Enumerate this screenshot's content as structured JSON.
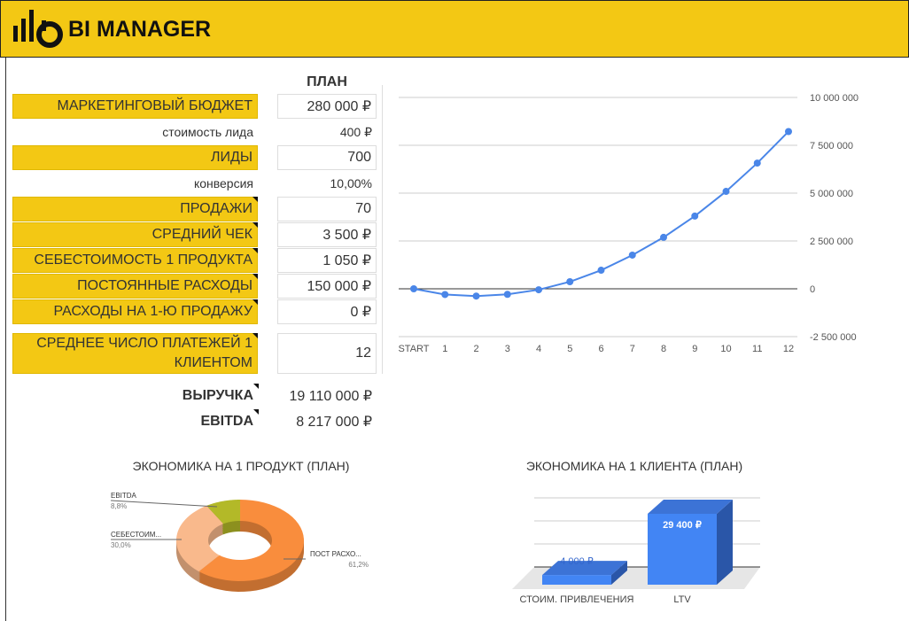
{
  "header": {
    "title": "BI MANAGER"
  },
  "table": {
    "column_header": "ПЛАН",
    "rows": [
      [
        "МАРКЕТИНГОВЫЙ БЮДЖЕТ",
        "280 000 ₽"
      ],
      [
        "стоимость лида",
        "400 ₽"
      ],
      [
        "ЛИДЫ",
        "700"
      ],
      [
        "конверсия",
        "10,00%"
      ],
      [
        "ПРОДАЖИ",
        "70"
      ],
      [
        "СРЕДНИЙ ЧЕК",
        "3 500 ₽"
      ],
      [
        "СЕБЕСТОИМОСТЬ 1 ПРОДУКТА",
        "1 050 ₽"
      ],
      [
        "ПОСТОЯННЫЕ РАСХОДЫ",
        "150 000 ₽"
      ],
      [
        "РАСХОДЫ НА 1-Ю ПРОДАЖУ",
        "0 ₽"
      ],
      [
        "СРЕДНЕЕ ЧИСЛО ПЛАТЕЖЕЙ 1 КЛИЕНТОМ",
        "12"
      ],
      [
        "ВЫРУЧКА",
        "19 110 000 ₽"
      ],
      [
        "EBITDA",
        "8 217 000 ₽"
      ]
    ]
  },
  "chart_data": [
    {
      "type": "line",
      "categories": [
        "START",
        "1",
        "2",
        "3",
        "4",
        "5",
        "6",
        "7",
        "8",
        "9",
        "10",
        "11",
        "12"
      ],
      "values": [
        0,
        -300000,
        -380000,
        -290000,
        -50000,
        370000,
        970000,
        1760000,
        2690000,
        3800000,
        5090000,
        6570000,
        8217000
      ],
      "color": "#4a86e8",
      "ylim": [
        -2500000,
        10000000
      ],
      "yticks": [
        {
          "value": -2500000,
          "label": "-2 500 000"
        },
        0,
        {
          "value": 2500000,
          "label": "2 500 000"
        },
        {
          "value": 5000000,
          "label": "5 000 000"
        },
        {
          "value": 7500000,
          "label": "7 500 000"
        },
        {
          "value": 10000000,
          "label": "10 000 000"
        }
      ],
      "grid": true
    },
    {
      "type": "pie",
      "title": "ЭКОНОМИКА НА 1 ПРОДУКТ (ПЛАН)",
      "categories": [
        "ПОСТ РАСХО...",
        "СЕБЕСТОИМ...",
        "EBITDA"
      ],
      "values": [
        61.2,
        30.0,
        8.8
      ],
      "value_labels": [
        "61,2%",
        "30,0%",
        "8,8%"
      ],
      "colors": [
        "#f98d3d",
        "#f9b98c",
        "#b3b928"
      ]
    },
    {
      "type": "bar",
      "title": "ЭКОНОМИКА НА 1 КЛИЕНТА (ПЛАН)",
      "categories": [
        "СТОИМ. ПРИВЛЕЧЕНИЯ",
        "LTV"
      ],
      "values": [
        4000,
        29400
      ],
      "value_labels": [
        "4 000 ₽",
        "29 400 ₽"
      ],
      "color": "#4285f4"
    }
  ]
}
